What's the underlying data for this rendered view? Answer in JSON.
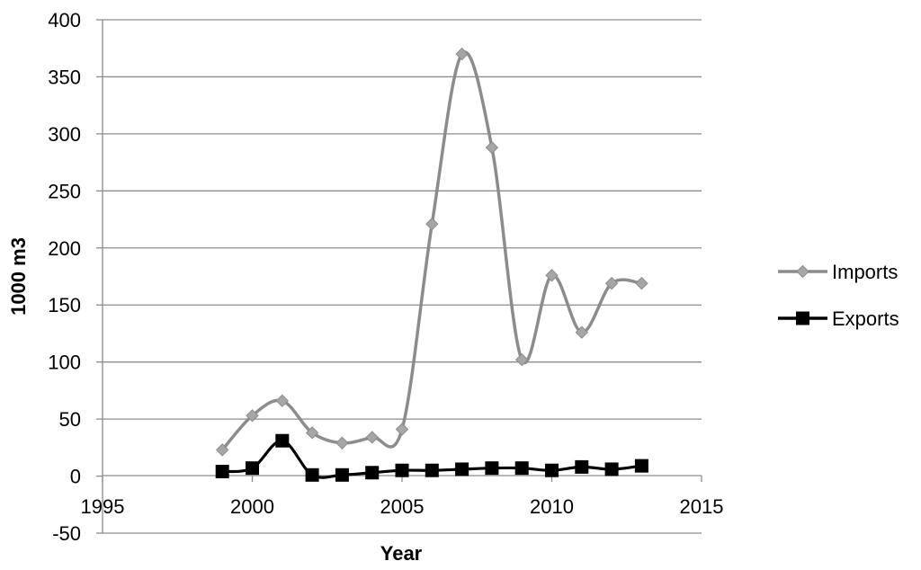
{
  "chart_data": {
    "type": "scatter",
    "title": "",
    "xlabel": "Year",
    "ylabel": "1000 m3",
    "xlim": [
      1995,
      2015
    ],
    "ylim": [
      -50,
      400
    ],
    "x_ticks": [
      1995,
      2000,
      2005,
      2010,
      2015
    ],
    "y_ticks": [
      -50,
      0,
      50,
      100,
      150,
      200,
      250,
      300,
      350,
      400
    ],
    "grid": "horizontal",
    "legend_position": "right",
    "series": [
      {
        "name": "Imports",
        "color": "#8c8c8c",
        "marker": "diamond",
        "smooth": true,
        "x": [
          1999,
          2000,
          2001,
          2002,
          2003,
          2004,
          2005,
          2006,
          2007,
          2008,
          2009,
          2010,
          2011,
          2012,
          2013
        ],
        "y": [
          23,
          53,
          66,
          38,
          29,
          34,
          41,
          221,
          370,
          288,
          102,
          176,
          126,
          169,
          169
        ]
      },
      {
        "name": "Exports",
        "color": "#000000",
        "marker": "square",
        "smooth": true,
        "x": [
          1999,
          2000,
          2001,
          2002,
          2003,
          2004,
          2005,
          2006,
          2007,
          2008,
          2009,
          2010,
          2011,
          2012,
          2013
        ],
        "y": [
          4,
          7,
          31,
          1,
          1,
          3,
          5,
          5,
          6,
          7,
          7,
          5,
          8,
          6,
          9
        ]
      }
    ]
  }
}
